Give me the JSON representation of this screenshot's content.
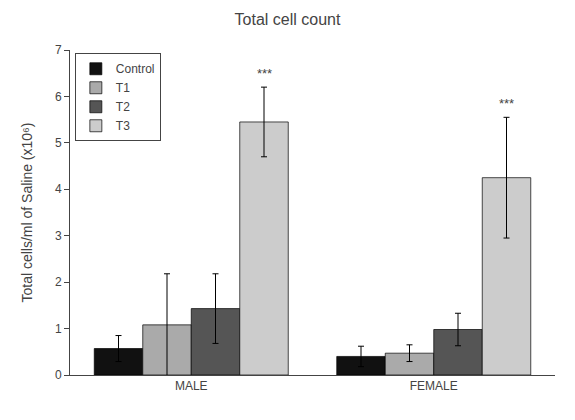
{
  "chart_data": {
    "type": "bar",
    "title": "Total cell count",
    "ylabel": "Total cells/ml of Saline (x10⁶)",
    "categories": [
      "MALE",
      "FEMALE"
    ],
    "series": [
      {
        "name": "Control",
        "color": "#111111",
        "values": [
          0.57,
          0.4
        ],
        "errors": [
          0.28,
          0.22
        ]
      },
      {
        "name": "T1",
        "color": "#aaaaaa",
        "values": [
          1.08,
          0.47
        ],
        "errors": [
          1.1,
          0.18
        ]
      },
      {
        "name": "T2",
        "color": "#555555",
        "values": [
          1.43,
          0.98
        ],
        "errors": [
          0.75,
          0.35
        ]
      },
      {
        "name": "T3",
        "color": "#cccccc",
        "values": [
          5.45,
          4.25
        ],
        "errors": [
          0.75,
          1.3
        ]
      }
    ],
    "annotations": [
      {
        "text": "***",
        "series": "T3",
        "category": "MALE"
      },
      {
        "text": "***",
        "series": "T3",
        "category": "FEMALE"
      }
    ],
    "ylim": [
      0,
      7
    ],
    "yticks": [
      0,
      1,
      2,
      3,
      4,
      5,
      6,
      7
    ],
    "grid": false,
    "legend": "upper left"
  }
}
